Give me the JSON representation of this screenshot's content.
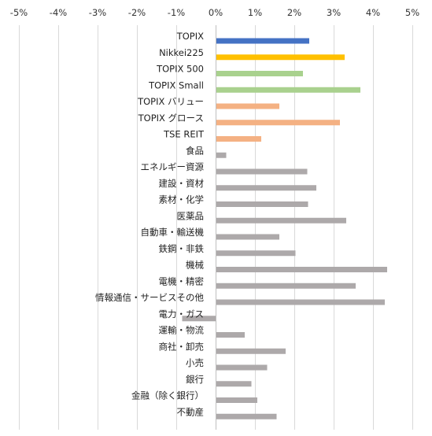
{
  "chart_data": {
    "type": "bar",
    "orientation": "horizontal",
    "title": "",
    "xlabel": "",
    "ylabel": "",
    "xlim": [
      -5,
      5
    ],
    "x_ticks": [
      -5,
      -4,
      -3,
      -2,
      -1,
      0,
      1,
      2,
      3,
      4,
      5
    ],
    "x_tick_labels": [
      "-5%",
      "-4%",
      "-3%",
      "-2%",
      "-1%",
      "0%",
      "1%",
      "2%",
      "3%",
      "4%",
      "5%"
    ],
    "x_axis_position": "top",
    "grid": true,
    "legend": "none",
    "categories": [
      "TOPIX",
      "Nikkei225",
      "TOPIX 500",
      "TOPIX Small",
      "TOPIX バリュー",
      "TOPIX グロース",
      "TSE REIT",
      "食品",
      "エネルギー資源",
      "建設・資材",
      "素材・化学",
      "医薬品",
      "自動車・輸送機",
      "鉄鋼・非鉄",
      "機械",
      "電機・精密",
      "情報通信・サービスその他",
      "電力・ガス",
      "運輸・物流",
      "商社・卸売",
      "小売",
      "銀行",
      "金融（除く銀行）",
      "不動産"
    ],
    "values": [
      2.38,
      3.28,
      2.22,
      3.68,
      1.62,
      3.16,
      1.16,
      0.27,
      2.33,
      2.56,
      2.35,
      3.32,
      1.62,
      2.03,
      4.36,
      3.56,
      4.3,
      -0.85,
      0.74,
      1.78,
      1.31,
      0.91,
      1.06,
      1.55
    ],
    "bar_colors": [
      "#4472C4",
      "#FFC000",
      "#A9D18E",
      "#A9D18E",
      "#F4B183",
      "#F4B183",
      "#F4B183",
      "#ADA9AA",
      "#ADA9AA",
      "#ADA9AA",
      "#ADA9AA",
      "#ADA9AA",
      "#ADA9AA",
      "#ADA9AA",
      "#ADA9AA",
      "#ADA9AA",
      "#ADA9AA",
      "#ADA9AA",
      "#ADA9AA",
      "#ADA9AA",
      "#ADA9AA",
      "#ADA9AA",
      "#ADA9AA",
      "#ADA9AA"
    ],
    "colors": {
      "grid": "#D9D9D9",
      "zero_line": "#BFBFBF"
    }
  }
}
